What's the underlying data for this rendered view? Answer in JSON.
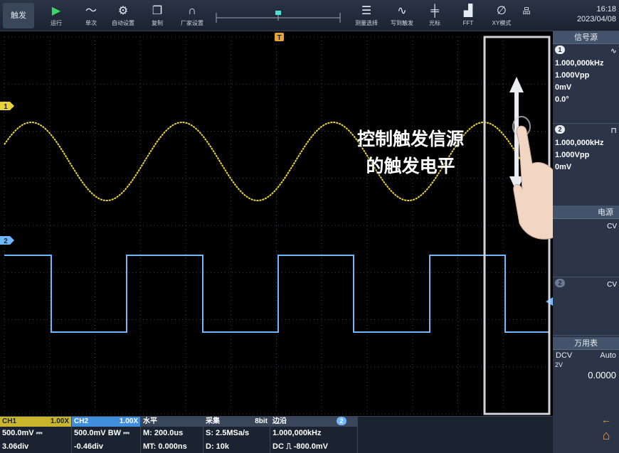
{
  "toolbar": {
    "trigger_label": "触发",
    "buttons": [
      {
        "name": "run",
        "label": "运行"
      },
      {
        "name": "single",
        "label": "单次"
      },
      {
        "name": "auto-setup",
        "label": "自动设置"
      },
      {
        "name": "copy",
        "label": "复制"
      },
      {
        "name": "factory",
        "label": "厂家设置"
      },
      {
        "name": "measure",
        "label": "测量选择"
      },
      {
        "name": "mask",
        "label": "写到触发"
      },
      {
        "name": "cursor",
        "label": "光标"
      },
      {
        "name": "fft",
        "label": "FFT"
      },
      {
        "name": "xy",
        "label": "XY模式"
      }
    ],
    "time": "16:18",
    "date": "2023/04/08"
  },
  "plot": {
    "trigger_marker": "T",
    "ch1_marker": "1",
    "ch2_marker": "2",
    "overlay_line1": "控制触发信源",
    "overlay_line2": "的触发电平",
    "ch1_color": "#e8d23a",
    "ch2_color": "#6fb8ff",
    "grid_color": "#3a3f4a"
  },
  "signal_source": {
    "title": "信号源",
    "ch1": {
      "badge": "1",
      "wave": "sine",
      "freq": "1.000,000kHz",
      "amp": "1.000Vpp",
      "offset": "0mV",
      "phase": "0.0°"
    },
    "ch2": {
      "badge": "2",
      "wave": "square",
      "freq": "1.000,000kHz",
      "amp": "1.000Vpp",
      "offset": "0mV"
    }
  },
  "power": {
    "title": "电源",
    "ch1_badge": "1",
    "ch1_mode": "CV",
    "ch2_badge": "2",
    "ch2_mode": "CV"
  },
  "dmm": {
    "title": "万用表",
    "mode": "DCV",
    "range": "Auto",
    "range_value": "2V",
    "reading": "0.0000"
  },
  "status": {
    "ch1": {
      "name": "CH1",
      "probe": "1.00X",
      "scale": "500.0mV ⎓",
      "pos": "3.06div"
    },
    "ch2": {
      "name": "CH2",
      "probe": "1.00X",
      "scale": "500.0mV BW ⎓",
      "pos": "-0.46div"
    },
    "horizontal": {
      "title": "水平",
      "main": "M: 200.0us",
      "delay": "MT: 0.000ns"
    },
    "acquire": {
      "title": "采集",
      "bits": "8bit",
      "rate": "S: 2.5MSa/s",
      "depth": "D: 10k"
    },
    "trigger": {
      "title": "边沿",
      "source": "2",
      "freq": "1.000,000kHz",
      "level": "DC ⎍ -800.0mV"
    }
  }
}
